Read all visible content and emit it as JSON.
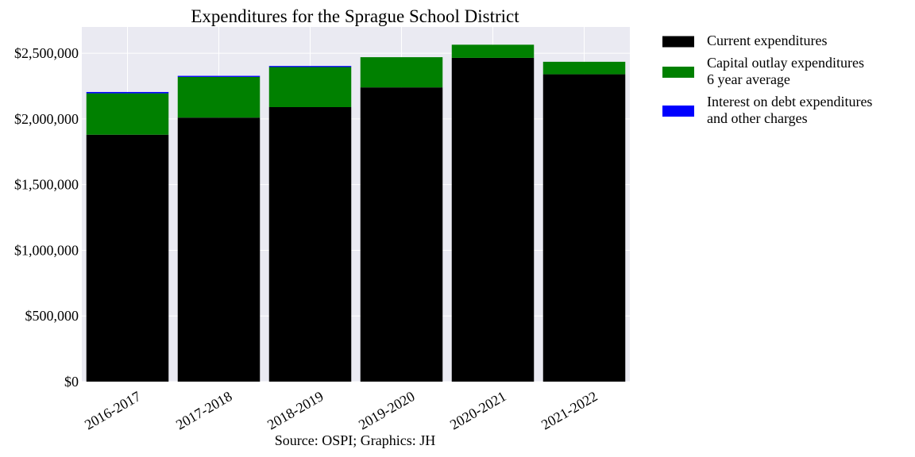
{
  "chart_data": {
    "type": "bar",
    "stacked": true,
    "title": "Expenditures for the Sprague School District",
    "source": "Source: OSPI; Graphics: JH",
    "categories": [
      "2016-2017",
      "2017-2018",
      "2018-2019",
      "2019-2020",
      "2020-2021",
      "2021-2022"
    ],
    "series": [
      {
        "name": "Current expenditures",
        "color": "#000000",
        "values": [
          1880000,
          2010000,
          2090000,
          2240000,
          2465000,
          2340000
        ]
      },
      {
        "name": "Capital outlay expenditures\n6 year average",
        "color": "#008000",
        "values": [
          315000,
          310000,
          305000,
          230000,
          100000,
          95000
        ]
      },
      {
        "name": "Interest on debt expenditures\nand other charges",
        "color": "#0000ff",
        "values": [
          10000,
          8000,
          8000,
          0,
          0,
          0
        ]
      }
    ],
    "ylim": [
      0,
      2700000
    ],
    "yticks": [
      0,
      500000,
      1000000,
      1500000,
      2000000,
      2500000
    ],
    "ytick_labels": [
      "$0",
      "$500,000",
      "$1,000,000",
      "$1,500,000",
      "$2,000,000",
      "$2,500,000"
    ],
    "grid": true,
    "legend_position": "outside-right-top",
    "plot_background": "#eaeaf2"
  }
}
